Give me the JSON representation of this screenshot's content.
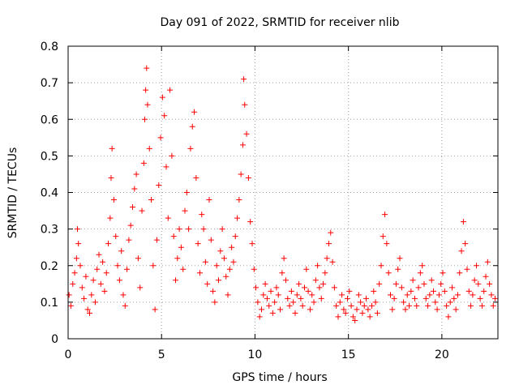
{
  "chart_data": {
    "type": "scatter",
    "title": "Day 091 of 2022, SRMTID for receiver nlib",
    "xlabel": "GPS time / hours",
    "ylabel": "SRMTID / TECUs",
    "xlim": [
      0,
      23
    ],
    "ylim": [
      0,
      0.8
    ],
    "xticks": [
      0,
      5,
      10,
      15,
      20
    ],
    "xtick_labels": [
      "0",
      "5",
      "10",
      "15",
      "20"
    ],
    "yticks": [
      0,
      0.1,
      0.2,
      0.3,
      0.4,
      0.5,
      0.6,
      0.7,
      0.8
    ],
    "ytick_labels": [
      "0",
      "0.1",
      "0.2",
      "0.3",
      "0.4",
      "0.5",
      "0.6",
      "0.7",
      "0.8"
    ],
    "grid": true,
    "marker": "+",
    "color": "#ff0000",
    "series": [
      {
        "name": "SRMTID",
        "points": [
          [
            0.05,
            0.12
          ],
          [
            0.15,
            0.09
          ],
          [
            0.25,
            0.15
          ],
          [
            0.35,
            0.18
          ],
          [
            0.45,
            0.22
          ],
          [
            0.5,
            0.3
          ],
          [
            0.55,
            0.26
          ],
          [
            0.65,
            0.2
          ],
          [
            0.75,
            0.14
          ],
          [
            0.85,
            0.11
          ],
          [
            0.95,
            0.17
          ],
          [
            1.05,
            0.08
          ],
          [
            1.15,
            0.07
          ],
          [
            1.25,
            0.12
          ],
          [
            1.35,
            0.16
          ],
          [
            1.45,
            0.1
          ],
          [
            1.55,
            0.19
          ],
          [
            1.65,
            0.23
          ],
          [
            1.75,
            0.15
          ],
          [
            1.85,
            0.21
          ],
          [
            1.95,
            0.13
          ],
          [
            2.05,
            0.18
          ],
          [
            2.15,
            0.26
          ],
          [
            2.25,
            0.33
          ],
          [
            2.3,
            0.44
          ],
          [
            2.35,
            0.52
          ],
          [
            2.45,
            0.38
          ],
          [
            2.55,
            0.28
          ],
          [
            2.65,
            0.2
          ],
          [
            2.75,
            0.16
          ],
          [
            2.85,
            0.24
          ],
          [
            2.95,
            0.12
          ],
          [
            3.05,
            0.09
          ],
          [
            3.15,
            0.19
          ],
          [
            3.25,
            0.27
          ],
          [
            3.35,
            0.31
          ],
          [
            3.45,
            0.36
          ],
          [
            3.55,
            0.41
          ],
          [
            3.65,
            0.45
          ],
          [
            3.75,
            0.22
          ],
          [
            3.85,
            0.14
          ],
          [
            3.95,
            0.35
          ],
          [
            4.05,
            0.48
          ],
          [
            4.1,
            0.6
          ],
          [
            4.15,
            0.68
          ],
          [
            4.2,
            0.74
          ],
          [
            4.25,
            0.64
          ],
          [
            4.35,
            0.52
          ],
          [
            4.45,
            0.38
          ],
          [
            4.55,
            0.2
          ],
          [
            4.65,
            0.08
          ],
          [
            4.75,
            0.27
          ],
          [
            4.85,
            0.42
          ],
          [
            4.95,
            0.55
          ],
          [
            5.05,
            0.66
          ],
          [
            5.15,
            0.61
          ],
          [
            5.25,
            0.47
          ],
          [
            5.35,
            0.33
          ],
          [
            5.45,
            0.68
          ],
          [
            5.55,
            0.5
          ],
          [
            5.65,
            0.28
          ],
          [
            5.75,
            0.16
          ],
          [
            5.85,
            0.22
          ],
          [
            5.95,
            0.3
          ],
          [
            6.05,
            0.25
          ],
          [
            6.15,
            0.19
          ],
          [
            6.25,
            0.35
          ],
          [
            6.35,
            0.4
          ],
          [
            6.45,
            0.3
          ],
          [
            6.55,
            0.52
          ],
          [
            6.65,
            0.58
          ],
          [
            6.75,
            0.62
          ],
          [
            6.85,
            0.44
          ],
          [
            6.95,
            0.26
          ],
          [
            7.05,
            0.18
          ],
          [
            7.15,
            0.34
          ],
          [
            7.25,
            0.3
          ],
          [
            7.35,
            0.21
          ],
          [
            7.45,
            0.15
          ],
          [
            7.55,
            0.38
          ],
          [
            7.65,
            0.27
          ],
          [
            7.75,
            0.13
          ],
          [
            7.85,
            0.1
          ],
          [
            7.95,
            0.2
          ],
          [
            8.05,
            0.16
          ],
          [
            8.15,
            0.24
          ],
          [
            8.25,
            0.3
          ],
          [
            8.35,
            0.22
          ],
          [
            8.45,
            0.17
          ],
          [
            8.55,
            0.12
          ],
          [
            8.65,
            0.19
          ],
          [
            8.75,
            0.25
          ],
          [
            8.85,
            0.21
          ],
          [
            8.95,
            0.28
          ],
          [
            9.05,
            0.33
          ],
          [
            9.15,
            0.38
          ],
          [
            9.25,
            0.45
          ],
          [
            9.35,
            0.53
          ],
          [
            9.4,
            0.71
          ],
          [
            9.45,
            0.64
          ],
          [
            9.55,
            0.56
          ],
          [
            9.65,
            0.44
          ],
          [
            9.75,
            0.32
          ],
          [
            9.85,
            0.26
          ],
          [
            9.95,
            0.19
          ],
          [
            10.05,
            0.14
          ],
          [
            10.15,
            0.1
          ],
          [
            10.25,
            0.06
          ],
          [
            10.35,
            0.08
          ],
          [
            10.45,
            0.12
          ],
          [
            10.55,
            0.15
          ],
          [
            10.65,
            0.11
          ],
          [
            10.75,
            0.09
          ],
          [
            10.85,
            0.13
          ],
          [
            10.95,
            0.07
          ],
          [
            11.05,
            0.1
          ],
          [
            11.15,
            0.14
          ],
          [
            11.25,
            0.12
          ],
          [
            11.35,
            0.08
          ],
          [
            11.45,
            0.18
          ],
          [
            11.55,
            0.22
          ],
          [
            11.65,
            0.16
          ],
          [
            11.75,
            0.11
          ],
          [
            11.85,
            0.09
          ],
          [
            11.95,
            0.13
          ],
          [
            12.05,
            0.1
          ],
          [
            12.15,
            0.07
          ],
          [
            12.25,
            0.12
          ],
          [
            12.35,
            0.15
          ],
          [
            12.45,
            0.11
          ],
          [
            12.55,
            0.09
          ],
          [
            12.65,
            0.14
          ],
          [
            12.75,
            0.19
          ],
          [
            12.85,
            0.13
          ],
          [
            12.95,
            0.08
          ],
          [
            13.05,
            0.12
          ],
          [
            13.15,
            0.1
          ],
          [
            13.25,
            0.16
          ],
          [
            13.35,
            0.2
          ],
          [
            13.45,
            0.14
          ],
          [
            13.55,
            0.11
          ],
          [
            13.65,
            0.15
          ],
          [
            13.75,
            0.18
          ],
          [
            13.85,
            0.22
          ],
          [
            13.95,
            0.26
          ],
          [
            14.05,
            0.29
          ],
          [
            14.15,
            0.21
          ],
          [
            14.25,
            0.14
          ],
          [
            14.35,
            0.09
          ],
          [
            14.45,
            0.06
          ],
          [
            14.55,
            0.1
          ],
          [
            14.65,
            0.12
          ],
          [
            14.75,
            0.08
          ],
          [
            14.85,
            0.07
          ],
          [
            14.95,
            0.11
          ],
          [
            15.05,
            0.13
          ],
          [
            15.15,
            0.09
          ],
          [
            15.25,
            0.06
          ],
          [
            15.35,
            0.05
          ],
          [
            15.45,
            0.08
          ],
          [
            15.55,
            0.12
          ],
          [
            15.65,
            0.1
          ],
          [
            15.75,
            0.07
          ],
          [
            15.85,
            0.09
          ],
          [
            15.95,
            0.11
          ],
          [
            16.05,
            0.08
          ],
          [
            16.15,
            0.06
          ],
          [
            16.25,
            0.09
          ],
          [
            16.35,
            0.13
          ],
          [
            16.45,
            0.1
          ],
          [
            16.55,
            0.07
          ],
          [
            16.65,
            0.15
          ],
          [
            16.75,
            0.2
          ],
          [
            16.85,
            0.28
          ],
          [
            16.95,
            0.34
          ],
          [
            17.05,
            0.26
          ],
          [
            17.15,
            0.18
          ],
          [
            17.25,
            0.12
          ],
          [
            17.35,
            0.08
          ],
          [
            17.45,
            0.11
          ],
          [
            17.55,
            0.15
          ],
          [
            17.65,
            0.19
          ],
          [
            17.75,
            0.22
          ],
          [
            17.85,
            0.14
          ],
          [
            17.95,
            0.1
          ],
          [
            18.05,
            0.08
          ],
          [
            18.15,
            0.12
          ],
          [
            18.25,
            0.09
          ],
          [
            18.35,
            0.13
          ],
          [
            18.45,
            0.16
          ],
          [
            18.55,
            0.11
          ],
          [
            18.65,
            0.09
          ],
          [
            18.75,
            0.14
          ],
          [
            18.85,
            0.18
          ],
          [
            18.95,
            0.2
          ],
          [
            19.05,
            0.15
          ],
          [
            19.15,
            0.11
          ],
          [
            19.25,
            0.09
          ],
          [
            19.35,
            0.12
          ],
          [
            19.45,
            0.16
          ],
          [
            19.55,
            0.13
          ],
          [
            19.65,
            0.1
          ],
          [
            19.75,
            0.08
          ],
          [
            19.85,
            0.12
          ],
          [
            19.95,
            0.15
          ],
          [
            20.05,
            0.18
          ],
          [
            20.15,
            0.13
          ],
          [
            20.25,
            0.09
          ],
          [
            20.35,
            0.06
          ],
          [
            20.45,
            0.1
          ],
          [
            20.55,
            0.14
          ],
          [
            20.65,
            0.11
          ],
          [
            20.75,
            0.08
          ],
          [
            20.85,
            0.12
          ],
          [
            20.95,
            0.18
          ],
          [
            21.05,
            0.24
          ],
          [
            21.15,
            0.32
          ],
          [
            21.25,
            0.26
          ],
          [
            21.35,
            0.19
          ],
          [
            21.45,
            0.13
          ],
          [
            21.55,
            0.09
          ],
          [
            21.65,
            0.12
          ],
          [
            21.75,
            0.16
          ],
          [
            21.85,
            0.2
          ],
          [
            21.95,
            0.15
          ],
          [
            22.05,
            0.11
          ],
          [
            22.15,
            0.09
          ],
          [
            22.25,
            0.13
          ],
          [
            22.35,
            0.17
          ],
          [
            22.45,
            0.21
          ],
          [
            22.55,
            0.15
          ],
          [
            22.65,
            0.12
          ],
          [
            22.75,
            0.09
          ],
          [
            22.85,
            0.11
          ]
        ]
      }
    ]
  }
}
